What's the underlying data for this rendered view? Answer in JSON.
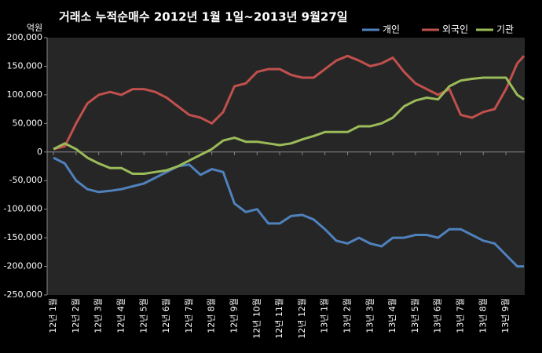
{
  "chart_data": {
    "type": "line",
    "title": "거래소  누적순매수 2012년 1월 1일~2013년 9월27일",
    "y_label": "억원",
    "x": [
      0,
      0.5,
      1,
      1.5,
      2,
      2.5,
      3,
      3.5,
      4,
      4.5,
      5,
      5.5,
      6,
      6.5,
      7,
      7.5,
      8,
      8.5,
      9,
      9.5,
      10,
      10.5,
      11,
      11.5,
      12,
      12.5,
      13,
      13.5,
      14,
      14.5,
      15,
      15.5,
      16,
      16.5,
      17,
      17.5,
      18,
      18.5,
      19,
      19.5,
      20,
      20.5,
      20.8
    ],
    "xlim": [
      -0.28,
      20.83
    ],
    "xticks": [
      {
        "value": 0,
        "label": "12년 1월"
      },
      {
        "value": 1,
        "label": "12년 2월"
      },
      {
        "value": 2,
        "label": "12년 3월"
      },
      {
        "value": 3,
        "label": "12년 4월"
      },
      {
        "value": 4,
        "label": "12년 5월"
      },
      {
        "value": 5,
        "label": "12년 6월"
      },
      {
        "value": 6,
        "label": "12년 7월"
      },
      {
        "value": 7,
        "label": "12년 8월"
      },
      {
        "value": 8,
        "label": "12년 9월"
      },
      {
        "value": 9,
        "label": "12년 10월"
      },
      {
        "value": 10,
        "label": "12년 11월"
      },
      {
        "value": 11,
        "label": "12년 12월"
      },
      {
        "value": 12,
        "label": "13년 1월"
      },
      {
        "value": 13,
        "label": "13년 2월"
      },
      {
        "value": 14,
        "label": "13년 3월"
      },
      {
        "value": 15,
        "label": "13년 4월"
      },
      {
        "value": 16,
        "label": "13년 5월"
      },
      {
        "value": 17,
        "label": "13년 6월"
      },
      {
        "value": 18,
        "label": "13년 7월"
      },
      {
        "value": 19,
        "label": "13년 8월"
      },
      {
        "value": 20,
        "label": "13년 9월"
      }
    ],
    "ylim": [
      -250000,
      200000
    ],
    "yticks": [
      {
        "value": 200000,
        "label": "200,000"
      },
      {
        "value": 150000,
        "label": "150,000"
      },
      {
        "value": 100000,
        "label": "100,000"
      },
      {
        "value": 50000,
        "label": "50,000"
      },
      0,
      {
        "value": -50000,
        "label": "-50,000"
      },
      {
        "value": -100000,
        "label": "-100,000"
      },
      {
        "value": -150000,
        "label": "-150,000"
      },
      {
        "value": -200000,
        "label": "-200,000"
      },
      {
        "value": -250000,
        "label": "-250,000"
      }
    ],
    "legend": "top-right",
    "series": [
      {
        "name": "개인",
        "color": "#4f81bd",
        "values": [
          -10000,
          -20000,
          -50000,
          -65000,
          -70000,
          -68000,
          -65000,
          -60000,
          -55000,
          -45000,
          -35000,
          -25000,
          -22000,
          -40000,
          -30000,
          -35000,
          -90000,
          -105000,
          -100000,
          -125000,
          -125000,
          -112000,
          -110000,
          -118000,
          -135000,
          -155000,
          -160000,
          -150000,
          -160000,
          -165000,
          -150000,
          -150000,
          -145000,
          -145000,
          -150000,
          -135000,
          -135000,
          -145000,
          -155000,
          -160000,
          -180000,
          -200000,
          -200000
        ]
      },
      {
        "name": "외국인",
        "color": "#c0504d",
        "values": [
          5000,
          10000,
          50000,
          85000,
          100000,
          105000,
          100000,
          110000,
          110000,
          105000,
          95000,
          80000,
          65000,
          60000,
          50000,
          70000,
          115000,
          120000,
          140000,
          145000,
          145000,
          135000,
          130000,
          130000,
          145000,
          160000,
          168000,
          160000,
          150000,
          155000,
          165000,
          140000,
          120000,
          110000,
          100000,
          110000,
          65000,
          60000,
          70000,
          75000,
          110000,
          155000,
          168000
        ]
      },
      {
        "name": "기관",
        "color": "#9bbb59",
        "values": [
          5000,
          15000,
          5000,
          -10000,
          -20000,
          -28000,
          -28000,
          -38000,
          -38000,
          -35000,
          -32000,
          -25000,
          -15000,
          -5000,
          5000,
          20000,
          25000,
          18000,
          18000,
          15000,
          12000,
          15000,
          22000,
          28000,
          35000,
          35000,
          35000,
          45000,
          45000,
          50000,
          60000,
          80000,
          90000,
          95000,
          92000,
          115000,
          125000,
          128000,
          130000,
          130000,
          130000,
          100000,
          92000
        ]
      }
    ]
  }
}
